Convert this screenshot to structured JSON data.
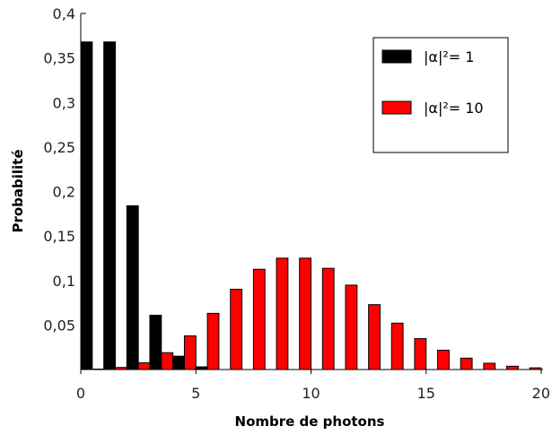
{
  "chart_data": {
    "type": "bar",
    "title": "",
    "xlabel": "Nombre de photons",
    "ylabel": "Probabilité",
    "xlim": [
      0,
      20
    ],
    "ylim": [
      0,
      0.4
    ],
    "x_ticks": [
      0,
      5,
      10,
      15,
      20
    ],
    "y_ticks": [
      "0,05",
      "0,1",
      "0,15",
      "0,2",
      "0,25",
      "0,3",
      "0,35",
      "0,4"
    ],
    "y_tick_values": [
      0.05,
      0.1,
      0.15,
      0.2,
      0.25,
      0.3,
      0.35,
      0.4
    ],
    "grid": false,
    "legend_position": "top-right",
    "series": [
      {
        "name": "|α|²= 1",
        "color": "#000000",
        "x": [
          0,
          1,
          2,
          3,
          4,
          5
        ],
        "values": [
          0.368,
          0.368,
          0.184,
          0.061,
          0.015,
          0.003
        ]
      },
      {
        "name": "|α|²= 10",
        "color": "#ff0000",
        "x": [
          1,
          2,
          3,
          4,
          5,
          6,
          7,
          8,
          9,
          10,
          11,
          12,
          13,
          14,
          15,
          16,
          17,
          18,
          19,
          20
        ],
        "values": [
          0.0005,
          0.0023,
          0.0076,
          0.0189,
          0.0378,
          0.0631,
          0.0901,
          0.1126,
          0.1251,
          0.1251,
          0.1137,
          0.0948,
          0.0729,
          0.0521,
          0.0347,
          0.0217,
          0.0128,
          0.0071,
          0.0037,
          0.0019
        ]
      }
    ]
  }
}
